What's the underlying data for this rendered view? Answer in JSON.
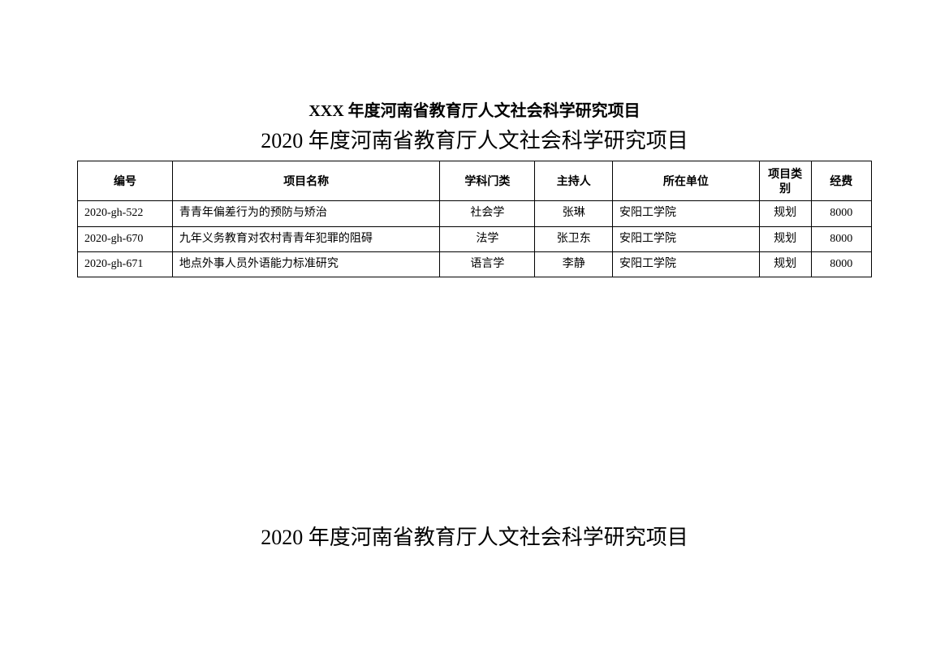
{
  "titles": {
    "bold": "XXX 年度河南省教育厅人文社会科学研究项目",
    "main": "2020 年度河南省教育厅人文社会科学研究项目",
    "footer": "2020 年度河南省教育厅人文社会科学研究项目"
  },
  "table": {
    "headers": {
      "id": "编号",
      "name": "项目名称",
      "subject": "学科门类",
      "host": "主持人",
      "org": "所在单位",
      "category": "项目类别",
      "funding": "经费"
    },
    "rows": [
      {
        "id": "2020-gh-522",
        "name": "青青年偏差行为的预防与矫治",
        "subject": "社会学",
        "host": "张琳",
        "org": "安阳工学院",
        "category": "规划",
        "funding": "8000"
      },
      {
        "id": "2020-gh-670",
        "name": "九年义务教育对农村青青年犯罪的阻碍",
        "subject": "法学",
        "host": "张卫东",
        "org": "安阳工学院",
        "category": "规划",
        "funding": "8000"
      },
      {
        "id": "2020-gh-671",
        "name": "地点外事人员外语能力标准研究",
        "subject": "语言学",
        "host": "李静",
        "org": "安阳工学院",
        "category": "规划",
        "funding": "8000"
      }
    ]
  },
  "styling": {
    "background_color": "#ffffff",
    "text_color": "#000000",
    "border_color": "#000000",
    "title_bold_fontsize": 20,
    "title_main_fontsize": 26,
    "table_fontsize": 14,
    "column_widths": {
      "id": 110,
      "name": 310,
      "subject": 110,
      "host": 90,
      "org": 170,
      "category": 60,
      "funding": 70
    },
    "column_align": {
      "id": "left",
      "name": "left",
      "subject": "center",
      "host": "center",
      "org": "left",
      "category": "center",
      "funding": "center"
    }
  }
}
